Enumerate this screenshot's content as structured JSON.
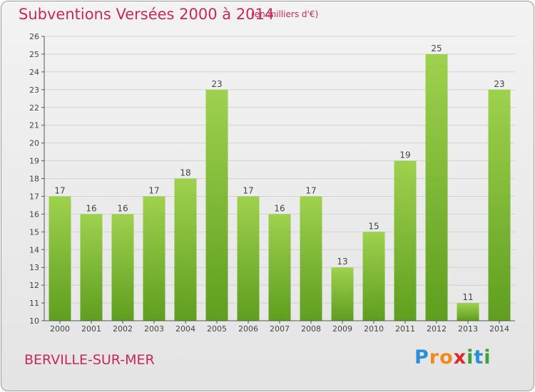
{
  "header": {
    "title": "Subventions Versées 2000 à 2014",
    "unit": "(en milliers d'€)"
  },
  "footer": {
    "commune": "BERVILLE-SUR-MER",
    "logo_letters": [
      "P",
      "r",
      "o",
      "x",
      "i",
      "t",
      "i"
    ],
    "logo_colors": [
      "#2a8fd6",
      "#f08a1c",
      "#f08a1c",
      "#e0262d",
      "#3aa335",
      "#2a8fd6",
      "#3aa335"
    ]
  },
  "chart_data": {
    "type": "bar",
    "title": "Subventions Versées 2000 à 2014",
    "subtitle": "(en milliers d'€)",
    "xlabel": "",
    "ylabel": "",
    "categories": [
      "2000",
      "2001",
      "2002",
      "2003",
      "2004",
      "2005",
      "2006",
      "2007",
      "2008",
      "2009",
      "2010",
      "2011",
      "2012",
      "2013",
      "2014"
    ],
    "values": [
      17,
      16,
      16,
      17,
      18,
      23,
      17,
      16,
      17,
      13,
      15,
      19,
      25,
      11,
      23
    ],
    "ylim": [
      10,
      26
    ],
    "yticks": [
      10,
      11,
      12,
      13,
      14,
      15,
      16,
      17,
      18,
      19,
      20,
      21,
      22,
      23,
      24,
      25,
      26
    ],
    "grid": "horizontal",
    "bar_color": "#7cbf2e",
    "bar_color_light": "#9ed14e",
    "bar_color_dark": "#5f9e1f",
    "legend": "none"
  }
}
